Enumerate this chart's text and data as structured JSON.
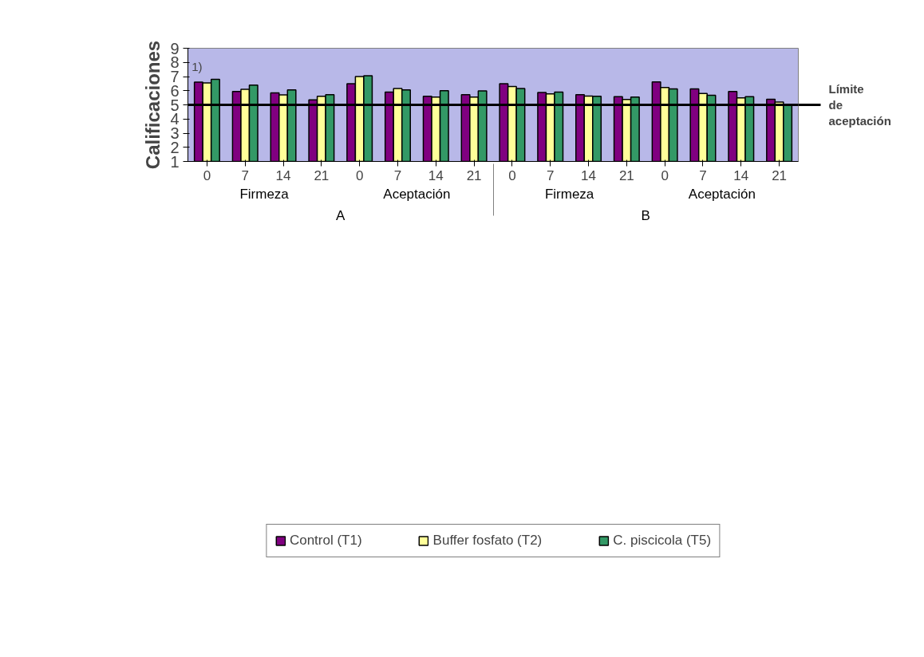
{
  "chart_data": {
    "type": "bar",
    "ylabel": "Calificaciones",
    "categories": [
      "0",
      "7",
      "14",
      "21",
      "0",
      "7",
      "14",
      "21",
      "0",
      "7",
      "14",
      "21",
      "0",
      "7",
      "14",
      "21"
    ],
    "series": [
      {
        "name": "Control (T1)",
        "color": "#800080",
        "values": [
          6.6,
          5.95,
          5.85,
          5.35,
          6.5,
          5.9,
          5.6,
          5.72,
          6.5,
          5.88,
          5.72,
          5.58,
          6.62,
          6.12,
          5.95,
          5.4
        ]
      },
      {
        "name": "Buffer fosfato (T2)",
        "color": "#ffff99",
        "values": [
          6.55,
          6.1,
          5.7,
          5.6,
          7.0,
          6.15,
          5.55,
          5.55,
          6.3,
          5.78,
          5.62,
          5.38,
          6.22,
          5.8,
          5.5,
          5.2
        ]
      },
      {
        "name": "C. piscicola (T5)",
        "color": "#339966",
        "values": [
          6.8,
          6.4,
          6.05,
          5.72,
          7.05,
          6.05,
          6.0,
          5.98,
          6.15,
          5.9,
          5.6,
          5.55,
          6.12,
          5.68,
          5.58,
          5.02
        ]
      }
    ],
    "ylim": [
      1,
      9
    ],
    "yticks": [
      1,
      2,
      3,
      4,
      5,
      6,
      7,
      8,
      9
    ],
    "grid": false,
    "legend": "bottom",
    "ref_lines": [
      {
        "axis": "y",
        "value": 5,
        "label": "Límite de aceptación",
        "color": "#000000"
      }
    ],
    "annotations": [
      "1)",
      "Firmeza",
      "Aceptación",
      "Firmeza",
      "Aceptación",
      "A",
      "B"
    ]
  }
}
